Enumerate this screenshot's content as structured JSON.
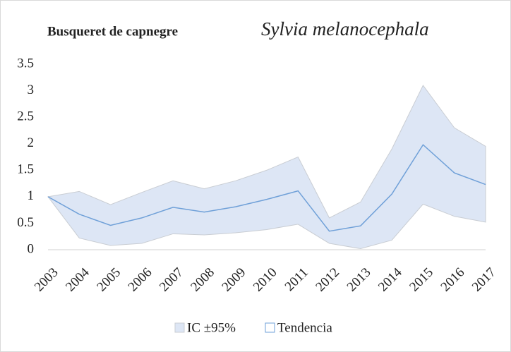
{
  "chart_data": {
    "type": "line",
    "title": "Busqueret de capnegre",
    "subtitle": "Sylvia melanocephala",
    "x": [
      2003,
      2004,
      2005,
      2006,
      2007,
      2008,
      2009,
      2010,
      2011,
      2012,
      2013,
      2014,
      2015,
      2016,
      2017
    ],
    "xlim": [
      2003,
      2017
    ],
    "ylim": [
      0,
      3.5
    ],
    "yticks": [
      0,
      0.5,
      1,
      1.5,
      2,
      2.5,
      3,
      3.5
    ],
    "series": [
      {
        "name": "IC ±95%",
        "color": "#dde6f5",
        "edge": "#c9cdd3",
        "upper": [
          1,
          1.1,
          0.85,
          1.08,
          1.3,
          1.15,
          1.3,
          1.5,
          1.75,
          0.6,
          0.9,
          1.9,
          3.1,
          2.3,
          1.95
        ],
        "lower": [
          1,
          0.22,
          0.08,
          0.12,
          0.3,
          0.28,
          0.32,
          0.38,
          0.48,
          0.12,
          0.02,
          0.18,
          0.86,
          0.63,
          0.52
        ]
      },
      {
        "name": "Tendencia",
        "color": "#6fa0d8",
        "values": [
          1,
          0.67,
          0.46,
          0.6,
          0.8,
          0.71,
          0.81,
          0.95,
          1.11,
          0.35,
          0.45,
          1.05,
          1.98,
          1.45,
          1.23
        ]
      }
    ]
  }
}
